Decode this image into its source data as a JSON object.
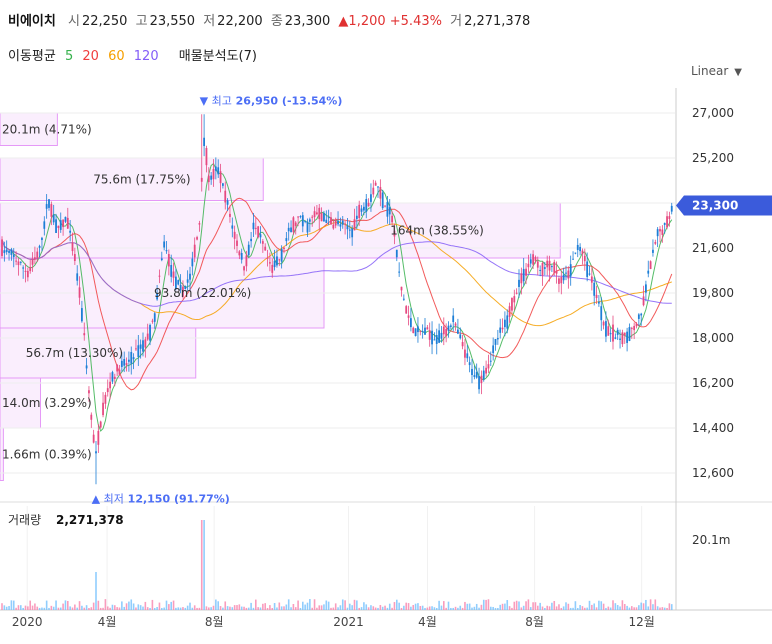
{
  "header": {
    "name": "비에이치",
    "open_label": "시",
    "open": "22,250",
    "high_label": "고",
    "high": "23,550",
    "low_label": "저",
    "low": "22,200",
    "close_label": "종",
    "close": "23,300",
    "change": "▲1,200 +5.43%",
    "volume_label": "거",
    "volume": "2,271,378"
  },
  "ma": {
    "label": "이동평균",
    "items": [
      {
        "value": "5",
        "color": "#37b24d"
      },
      {
        "value": "20",
        "color": "#f03e3e"
      },
      {
        "value": "60",
        "color": "#f59f00"
      },
      {
        "value": "120",
        "color": "#845ef7"
      }
    ],
    "profile_label": "매물분석도(7)"
  },
  "scale_button": "Linear",
  "chart_data": {
    "type": "candlestick",
    "price_axis": {
      "ticks": [
        "27,000",
        "25,200",
        "23,400",
        "21,600",
        "19,800",
        "18,000",
        "16,200",
        "14,400",
        "12,600"
      ],
      "range": [
        11600,
        28000
      ]
    },
    "last_price_tag": "23,300",
    "high_marker": {
      "label": "최고",
      "value": "26,950 (-13.54%)",
      "price": 26950,
      "date": "2020-07-20"
    },
    "low_marker": {
      "label": "최저",
      "value": "12,150 (91.77%)",
      "price": 12150,
      "date": "2020-03-19"
    },
    "time_axis": [
      "2020",
      "4월",
      "8월",
      "2021",
      "4월",
      "8월",
      "12월"
    ],
    "volume_panel": {
      "label": "거래량",
      "value": "2,271,378",
      "tick": "20.1m"
    },
    "profile": [
      {
        "label": "20.1m (4.71%)",
        "lo": 25700,
        "hi": 27000,
        "frac": 0.085
      },
      {
        "label": "75.6m (17.75%)",
        "lo": 23500,
        "hi": 25200,
        "frac": 0.39
      },
      {
        "label": "164m (38.55%)",
        "lo": 21200,
        "hi": 23400,
        "frac": 0.83
      },
      {
        "label": "93.8m (22.01%)",
        "lo": 18400,
        "hi": 21200,
        "frac": 0.48
      },
      {
        "label": "56.7m (13.30%)",
        "lo": 16400,
        "hi": 18400,
        "frac": 0.29
      },
      {
        "label": "14.0m (3.29%)",
        "lo": 14400,
        "hi": 16400,
        "frac": 0.06
      },
      {
        "label": "1.66m (0.39%)",
        "lo": 12300,
        "hi": 14400,
        "frac": 0.005
      }
    ],
    "price_path": [
      [
        "2019-12-01",
        21600
      ],
      [
        "2019-12-15",
        21300
      ],
      [
        "2020-01-02",
        20600
      ],
      [
        "2020-01-15",
        21500
      ],
      [
        "2020-01-25",
        23500
      ],
      [
        "2020-02-05",
        22300
      ],
      [
        "2020-02-15",
        22800
      ],
      [
        "2020-02-25",
        21000
      ],
      [
        "2020-03-05",
        18500
      ],
      [
        "2020-03-12",
        15500
      ],
      [
        "2020-03-19",
        13200
      ],
      [
        "2020-03-26",
        15000
      ],
      [
        "2020-04-05",
        16300
      ],
      [
        "2020-04-15",
        16800
      ],
      [
        "2020-04-25",
        17000
      ],
      [
        "2020-05-05",
        17500
      ],
      [
        "2020-05-15",
        17800
      ],
      [
        "2020-05-25",
        18800
      ],
      [
        "2020-06-05",
        21800
      ],
      [
        "2020-06-15",
        20500
      ],
      [
        "2020-06-25",
        19800
      ],
      [
        "2020-07-05",
        20500
      ],
      [
        "2020-07-15",
        22500
      ],
      [
        "2020-07-20",
        26000
      ],
      [
        "2020-07-27",
        24200
      ],
      [
        "2020-08-05",
        24800
      ],
      [
        "2020-08-15",
        23500
      ],
      [
        "2020-08-25",
        22000
      ],
      [
        "2020-09-05",
        20800
      ],
      [
        "2020-09-15",
        22500
      ],
      [
        "2020-09-25",
        21800
      ],
      [
        "2020-10-05",
        20700
      ],
      [
        "2020-10-15",
        21200
      ],
      [
        "2020-10-25",
        22200
      ],
      [
        "2020-11-05",
        22800
      ],
      [
        "2020-11-15",
        22500
      ],
      [
        "2020-11-25",
        23000
      ],
      [
        "2020-12-05",
        22800
      ],
      [
        "2020-12-15",
        22600
      ],
      [
        "2020-12-25",
        22500
      ],
      [
        "2021-01-05",
        22300
      ],
      [
        "2021-01-15",
        23200
      ],
      [
        "2021-01-25",
        23500
      ],
      [
        "2021-02-01",
        24200
      ],
      [
        "2021-02-10",
        23500
      ],
      [
        "2021-02-20",
        22800
      ],
      [
        "2021-03-01",
        20200
      ],
      [
        "2021-03-10",
        18800
      ],
      [
        "2021-03-20",
        18200
      ],
      [
        "2021-03-30",
        18300
      ],
      [
        "2021-04-10",
        18000
      ],
      [
        "2021-04-20",
        18200
      ],
      [
        "2021-04-30",
        18700
      ],
      [
        "2021-05-10",
        17800
      ],
      [
        "2021-05-20",
        16800
      ],
      [
        "2021-05-30",
        16300
      ],
      [
        "2021-06-10",
        17000
      ],
      [
        "2021-06-20",
        18000
      ],
      [
        "2021-06-30",
        18600
      ],
      [
        "2021-07-10",
        19800
      ],
      [
        "2021-07-20",
        20600
      ],
      [
        "2021-07-30",
        21200
      ],
      [
        "2021-08-10",
        20700
      ],
      [
        "2021-08-20",
        21000
      ],
      [
        "2021-08-30",
        20200
      ],
      [
        "2021-09-10",
        20600
      ],
      [
        "2021-09-20",
        21800
      ],
      [
        "2021-09-30",
        20800
      ],
      [
        "2021-10-10",
        19800
      ],
      [
        "2021-10-20",
        18500
      ],
      [
        "2021-10-30",
        18100
      ],
      [
        "2021-11-10",
        18000
      ],
      [
        "2021-11-20",
        18300
      ],
      [
        "2021-11-30",
        18800
      ],
      [
        "2021-12-10",
        20800
      ],
      [
        "2021-12-20",
        22200
      ],
      [
        "2021-12-30",
        22600
      ],
      [
        "2022-01-05",
        23300
      ]
    ]
  }
}
